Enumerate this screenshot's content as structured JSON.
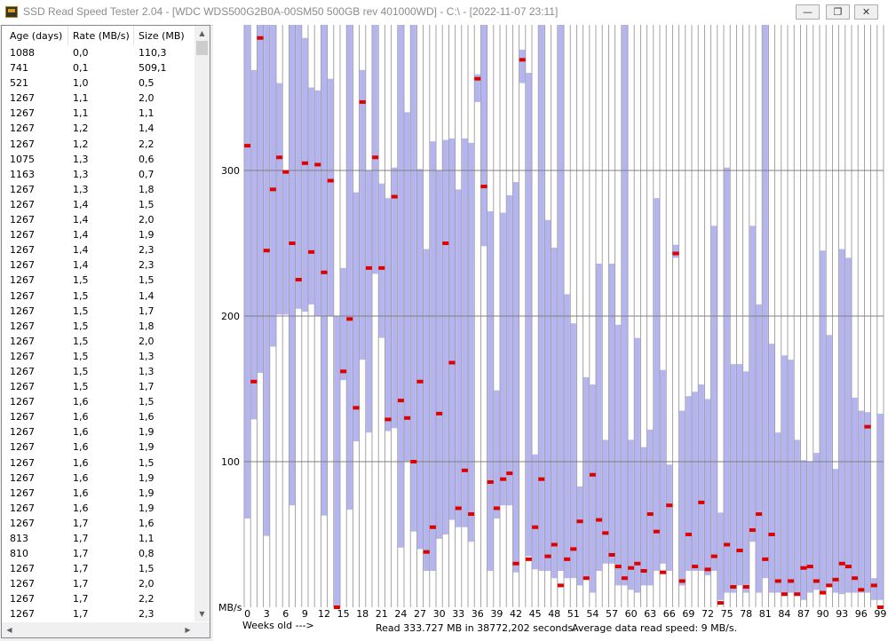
{
  "window": {
    "title": "SSD Read Speed Tester 2.04 - [WDC  WDS500G2B0A-00SM50 500GB rev 401000WD] - C:\\ - [2022-11-07 23:11]",
    "minimize_glyph": "—",
    "maximize_glyph": "❐",
    "close_glyph": "✕"
  },
  "list": {
    "headers": [
      "Age (days)",
      "Rate (MB/s)",
      "Size (MB)"
    ],
    "rows": [
      [
        "1088",
        "0,0",
        "110,3"
      ],
      [
        "741",
        "0,1",
        "509,1"
      ],
      [
        "521",
        "1,0",
        "0,5"
      ],
      [
        "1267",
        "1,1",
        "2,0"
      ],
      [
        "1267",
        "1,1",
        "1,1"
      ],
      [
        "1267",
        "1,2",
        "1,4"
      ],
      [
        "1267",
        "1,2",
        "2,2"
      ],
      [
        "1075",
        "1,3",
        "0,6"
      ],
      [
        "1163",
        "1,3",
        "0,7"
      ],
      [
        "1267",
        "1,3",
        "1,8"
      ],
      [
        "1267",
        "1,4",
        "1,5"
      ],
      [
        "1267",
        "1,4",
        "2,0"
      ],
      [
        "1267",
        "1,4",
        "1,9"
      ],
      [
        "1267",
        "1,4",
        "2,3"
      ],
      [
        "1267",
        "1,4",
        "2,3"
      ],
      [
        "1267",
        "1,5",
        "1,5"
      ],
      [
        "1267",
        "1,5",
        "1,4"
      ],
      [
        "1267",
        "1,5",
        "1,7"
      ],
      [
        "1267",
        "1,5",
        "1,8"
      ],
      [
        "1267",
        "1,5",
        "2,0"
      ],
      [
        "1267",
        "1,5",
        "1,3"
      ],
      [
        "1267",
        "1,5",
        "1,3"
      ],
      [
        "1267",
        "1,5",
        "1,7"
      ],
      [
        "1267",
        "1,6",
        "1,5"
      ],
      [
        "1267",
        "1,6",
        "1,6"
      ],
      [
        "1267",
        "1,6",
        "1,9"
      ],
      [
        "1267",
        "1,6",
        "1,9"
      ],
      [
        "1267",
        "1,6",
        "1,5"
      ],
      [
        "1267",
        "1,6",
        "1,9"
      ],
      [
        "1267",
        "1,6",
        "1,9"
      ],
      [
        "1267",
        "1,6",
        "1,9"
      ],
      [
        "1267",
        "1,7",
        "1,6"
      ],
      [
        "813",
        "1,7",
        "1,1"
      ],
      [
        "810",
        "1,7",
        "0,8"
      ],
      [
        "1267",
        "1,7",
        "1,5"
      ],
      [
        "1267",
        "1,7",
        "2,0"
      ],
      [
        "1267",
        "1,7",
        "2,2"
      ],
      [
        "1267",
        "1,7",
        "2,3"
      ]
    ]
  },
  "chart": {
    "y_unit_label": "MB/s",
    "footer_weeks": "Weeks old --->",
    "footer_read": "Read 333.727 MB in 38772,202 seconds.",
    "footer_avg": "Average data read speed: 9 MB/s.",
    "colors": {
      "band": "#b4b4f0",
      "avg_marker": "#e00000",
      "grid": "#808080",
      "week_line": "#909090"
    }
  },
  "chart_data": {
    "type": "range-bar",
    "x_label": "Weeks old --->",
    "y_label": "MB/s",
    "y_ticks": [
      100,
      200,
      300
    ],
    "ylim": [
      0,
      400
    ],
    "x_tick_labels": [
      "0",
      "3",
      "6",
      "9",
      "12",
      "15",
      "18",
      "21",
      "24",
      "27",
      "30",
      "33",
      "36",
      "39",
      "42",
      "45",
      "48",
      "51",
      "54",
      "57",
      "60",
      "63",
      "66",
      "69",
      "72",
      "75",
      "78",
      "81",
      "84",
      "87",
      "90",
      "93",
      "96",
      "99"
    ],
    "weeks": [
      {
        "w": 0,
        "min": 61,
        "max": 400,
        "avg": 317
      },
      {
        "w": 1,
        "min": 129,
        "max": 369,
        "avg": 155
      },
      {
        "w": 2,
        "min": 161,
        "max": 400,
        "avg": 391
      },
      {
        "w": 3,
        "min": 49,
        "max": 400,
        "avg": 245
      },
      {
        "w": 4,
        "min": 179,
        "max": 400,
        "avg": 287
      },
      {
        "w": 5,
        "min": 201,
        "max": 360,
        "avg": 309
      },
      {
        "w": 6,
        "min": 201,
        "max": 300,
        "avg": 299
      },
      {
        "w": 7,
        "min": 70,
        "max": 400,
        "avg": 250
      },
      {
        "w": 8,
        "min": 205,
        "max": 400,
        "avg": 225
      },
      {
        "w": 9,
        "min": 203,
        "max": 391,
        "avg": 305
      },
      {
        "w": 10,
        "min": 208,
        "max": 357,
        "avg": 244
      },
      {
        "w": 11,
        "min": 200,
        "max": 355,
        "avg": 304
      },
      {
        "w": 12,
        "min": 63,
        "max": 400,
        "avg": 230
      },
      {
        "w": 13,
        "min": 200,
        "max": 363,
        "avg": 293
      },
      {
        "w": 14,
        "min": 0,
        "max": 200,
        "avg": 0
      },
      {
        "w": 15,
        "min": 156,
        "max": 233,
        "avg": 162
      },
      {
        "w": 16,
        "min": 67,
        "max": 400,
        "avg": 198
      },
      {
        "w": 17,
        "min": 114,
        "max": 285,
        "avg": 137
      },
      {
        "w": 18,
        "min": 170,
        "max": 369,
        "avg": 347
      },
      {
        "w": 19,
        "min": 120,
        "max": 300,
        "avg": 233
      },
      {
        "w": 20,
        "min": 229,
        "max": 400,
        "avg": 309
      },
      {
        "w": 21,
        "min": 185,
        "max": 291,
        "avg": 233
      },
      {
        "w": 22,
        "min": 121,
        "max": 281,
        "avg": 129
      },
      {
        "w": 23,
        "min": 123,
        "max": 302,
        "avg": 282
      },
      {
        "w": 24,
        "min": 41,
        "max": 400,
        "avg": 142
      },
      {
        "w": 25,
        "min": 100,
        "max": 340,
        "avg": 130
      },
      {
        "w": 26,
        "min": 52,
        "max": 400,
        "avg": 100
      },
      {
        "w": 27,
        "min": 40,
        "max": 301,
        "avg": 155
      },
      {
        "w": 28,
        "min": 25,
        "max": 246,
        "avg": 38
      },
      {
        "w": 29,
        "min": 25,
        "max": 320,
        "avg": 55
      },
      {
        "w": 30,
        "min": 47,
        "max": 300,
        "avg": 133
      },
      {
        "w": 31,
        "min": 50,
        "max": 321,
        "avg": 250
      },
      {
        "w": 32,
        "min": 60,
        "max": 322,
        "avg": 168
      },
      {
        "w": 33,
        "min": 55,
        "max": 287,
        "avg": 68
      },
      {
        "w": 34,
        "min": 55,
        "max": 322,
        "avg": 94
      },
      {
        "w": 35,
        "min": 45,
        "max": 319,
        "avg": 64
      },
      {
        "w": 36,
        "min": 347,
        "max": 366,
        "avg": 363
      },
      {
        "w": 37,
        "min": 248,
        "max": 400,
        "avg": 289
      },
      {
        "w": 38,
        "min": 25,
        "max": 272,
        "avg": 86
      },
      {
        "w": 39,
        "min": 61,
        "max": 149,
        "avg": 68
      },
      {
        "w": 40,
        "min": 70,
        "max": 271,
        "avg": 88
      },
      {
        "w": 41,
        "min": 70,
        "max": 283,
        "avg": 92
      },
      {
        "w": 42,
        "min": 24,
        "max": 292,
        "avg": 30
      },
      {
        "w": 43,
        "min": 360,
        "max": 383,
        "avg": 376
      },
      {
        "w": 44,
        "min": 35,
        "max": 367,
        "avg": 33
      },
      {
        "w": 45,
        "min": 26,
        "max": 105,
        "avg": 55
      },
      {
        "w": 46,
        "min": 25,
        "max": 400,
        "avg": 88
      },
      {
        "w": 47,
        "min": 25,
        "max": 266,
        "avg": 35
      },
      {
        "w": 48,
        "min": 20,
        "max": 247,
        "avg": 43
      },
      {
        "w": 49,
        "min": 25,
        "max": 400,
        "avg": 15
      },
      {
        "w": 50,
        "min": 20,
        "max": 215,
        "avg": 33
      },
      {
        "w": 51,
        "min": 20,
        "max": 195,
        "avg": 40
      },
      {
        "w": 52,
        "min": 15,
        "max": 83,
        "avg": 59
      },
      {
        "w": 53,
        "min": 20,
        "max": 158,
        "avg": 20
      },
      {
        "w": 54,
        "min": 10,
        "max": 153,
        "avg": 91
      },
      {
        "w": 55,
        "min": 25,
        "max": 236,
        "avg": 60
      },
      {
        "w": 56,
        "min": 30,
        "max": 115,
        "avg": 51
      },
      {
        "w": 57,
        "min": 30,
        "max": 236,
        "avg": 36
      },
      {
        "w": 58,
        "min": 15,
        "max": 194,
        "avg": 28
      },
      {
        "w": 59,
        "min": 15,
        "max": 400,
        "avg": 20
      },
      {
        "w": 60,
        "min": 12,
        "max": 115,
        "avg": 27
      },
      {
        "w": 61,
        "min": 10,
        "max": 185,
        "avg": 30
      },
      {
        "w": 62,
        "min": 15,
        "max": 110,
        "avg": 25
      },
      {
        "w": 63,
        "min": 15,
        "max": 122,
        "avg": 64
      },
      {
        "w": 64,
        "min": 25,
        "max": 281,
        "avg": 52
      },
      {
        "w": 65,
        "min": 30,
        "max": 163,
        "avg": 24
      },
      {
        "w": 66,
        "min": 25,
        "max": 98,
        "avg": 70
      },
      {
        "w": 67,
        "min": 240,
        "max": 249,
        "avg": 243
      },
      {
        "w": 68,
        "min": 15,
        "max": 135,
        "avg": 18
      },
      {
        "w": 69,
        "min": 25,
        "max": 145,
        "avg": 50
      },
      {
        "w": 70,
        "min": 25,
        "max": 148,
        "avg": 28
      },
      {
        "w": 71,
        "min": 25,
        "max": 153,
        "avg": 72
      },
      {
        "w": 72,
        "min": 22,
        "max": 143,
        "avg": 26
      },
      {
        "w": 73,
        "min": 25,
        "max": 262,
        "avg": 35
      },
      {
        "w": 74,
        "min": 5,
        "max": 65,
        "avg": 3
      },
      {
        "w": 75,
        "min": 10,
        "max": 302,
        "avg": 43
      },
      {
        "w": 76,
        "min": 10,
        "max": 167,
        "avg": 14
      },
      {
        "w": 77,
        "min": 15,
        "max": 167,
        "avg": 39
      },
      {
        "w": 78,
        "min": 10,
        "max": 162,
        "avg": 14
      },
      {
        "w": 79,
        "min": 45,
        "max": 262,
        "avg": 53
      },
      {
        "w": 80,
        "min": 10,
        "max": 208,
        "avg": 64
      },
      {
        "w": 81,
        "min": 20,
        "max": 400,
        "avg": 33
      },
      {
        "w": 82,
        "min": 10,
        "max": 181,
        "avg": 50
      },
      {
        "w": 83,
        "min": 10,
        "max": 120,
        "avg": 18
      },
      {
        "w": 84,
        "min": 10,
        "max": 173,
        "avg": 9
      },
      {
        "w": 85,
        "min": 10,
        "max": 170,
        "avg": 18
      },
      {
        "w": 86,
        "min": 10,
        "max": 115,
        "avg": 9
      },
      {
        "w": 87,
        "min": 5,
        "max": 101,
        "avg": 27
      },
      {
        "w": 88,
        "min": 10,
        "max": 100,
        "avg": 28
      },
      {
        "w": 89,
        "min": 12,
        "max": 106,
        "avg": 18
      },
      {
        "w": 90,
        "min": 10,
        "max": 245,
        "avg": 10
      },
      {
        "w": 91,
        "min": 15,
        "max": 187,
        "avg": 15
      },
      {
        "w": 92,
        "min": 10,
        "max": 95,
        "avg": 19
      },
      {
        "w": 93,
        "min": 9,
        "max": 246,
        "avg": 30
      },
      {
        "w": 94,
        "min": 10,
        "max": 240,
        "avg": 28
      },
      {
        "w": 95,
        "min": 10,
        "max": 144,
        "avg": 20
      },
      {
        "w": 96,
        "min": 10,
        "max": 135,
        "avg": 12
      },
      {
        "w": 97,
        "min": 10,
        "max": 134,
        "avg": 124
      },
      {
        "w": 98,
        "min": 5,
        "max": 20,
        "avg": 15
      },
      {
        "w": 99,
        "min": 5,
        "max": 133,
        "avg": 0
      }
    ]
  }
}
